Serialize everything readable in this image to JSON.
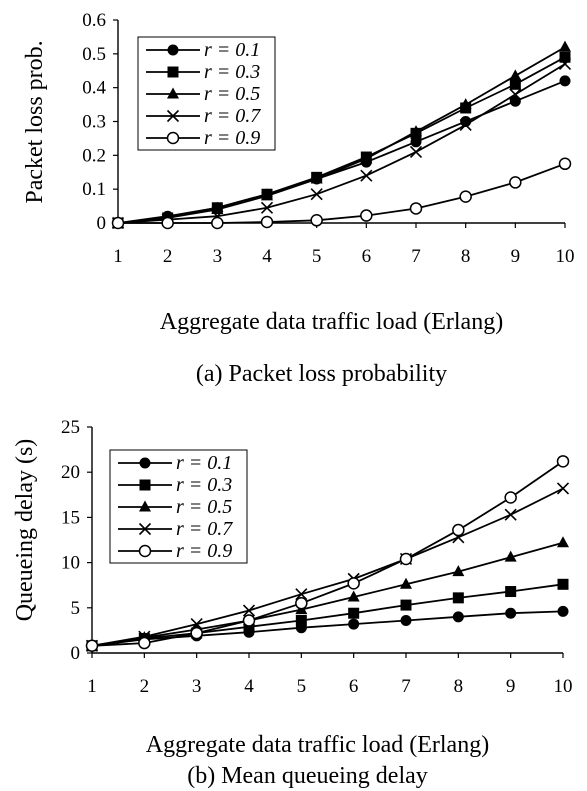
{
  "chart_data": [
    {
      "type": "line",
      "caption": "(a)   Packet loss probability",
      "xlabel": "Aggregate data traffic load (Erlang)",
      "ylabel": "Packet loss prob.",
      "x": [
        1,
        2,
        3,
        4,
        5,
        6,
        7,
        8,
        9,
        10
      ],
      "xlim": [
        1,
        10
      ],
      "ylim": [
        0,
        0.6
      ],
      "yticks": [
        "0",
        "0.1",
        "0.2",
        "0.3",
        "0.4",
        "0.5",
        "0.6"
      ],
      "xticks": [
        "1",
        "2",
        "3",
        "4",
        "5",
        "6",
        "7",
        "8",
        "9",
        "10"
      ],
      "grid": false,
      "legend_position": "top-left",
      "series": [
        {
          "name": "r = 0.1",
          "marker": "filled-circle",
          "values": [
            0,
            0.02,
            0.045,
            0.085,
            0.13,
            0.18,
            0.24,
            0.3,
            0.36,
            0.42
          ]
        },
        {
          "name": "r = 0.3",
          "marker": "filled-square",
          "values": [
            0,
            0.015,
            0.045,
            0.085,
            0.135,
            0.195,
            0.265,
            0.34,
            0.41,
            0.49
          ]
        },
        {
          "name": "r = 0.5",
          "marker": "filled-triangle",
          "values": [
            0,
            0.015,
            0.04,
            0.08,
            0.13,
            0.19,
            0.27,
            0.35,
            0.435,
            0.52
          ]
        },
        {
          "name": "r = 0.7",
          "marker": "cross",
          "values": [
            0,
            0.01,
            0.02,
            0.045,
            0.085,
            0.14,
            0.21,
            0.29,
            0.38,
            0.47
          ]
        },
        {
          "name": "r = 0.9",
          "marker": "open-circle",
          "values": [
            0,
            0,
            0,
            0.003,
            0.008,
            0.022,
            0.043,
            0.078,
            0.12,
            0.175
          ]
        }
      ]
    },
    {
      "type": "line",
      "caption": "(b)   Mean queueing delay",
      "xlabel": "Aggregate data traffic load (Erlang)",
      "ylabel": "Queueing delay (s)",
      "x": [
        1,
        2,
        3,
        4,
        5,
        6,
        7,
        8,
        9,
        10
      ],
      "xlim": [
        1,
        10
      ],
      "ylim": [
        0,
        25
      ],
      "yticks": [
        "0",
        "5",
        "10",
        "15",
        "20",
        "25"
      ],
      "xticks": [
        "1",
        "2",
        "3",
        "4",
        "5",
        "6",
        "7",
        "8",
        "9",
        "10"
      ],
      "grid": false,
      "legend_position": "top-left",
      "series": [
        {
          "name": "r = 0.1",
          "marker": "filled-circle",
          "values": [
            0.8,
            1.5,
            1.9,
            2.3,
            2.8,
            3.2,
            3.6,
            4.0,
            4.4,
            4.6
          ]
        },
        {
          "name": "r = 0.3",
          "marker": "filled-square",
          "values": [
            0.8,
            1.6,
            2.2,
            2.9,
            3.6,
            4.4,
            5.3,
            6.1,
            6.8,
            7.6
          ]
        },
        {
          "name": "r = 0.5",
          "marker": "filled-triangle",
          "values": [
            0.8,
            1.7,
            2.6,
            3.6,
            4.8,
            6.2,
            7.6,
            9.0,
            10.6,
            12.2
          ]
        },
        {
          "name": "r = 0.7",
          "marker": "cross",
          "values": [
            0.8,
            1.8,
            3.2,
            4.7,
            6.5,
            8.2,
            10.4,
            12.8,
            15.3,
            18.2
          ]
        },
        {
          "name": "r = 0.9",
          "marker": "open-circle",
          "values": [
            0.8,
            1.1,
            2.2,
            3.6,
            5.5,
            7.7,
            10.4,
            13.6,
            17.2,
            21.2
          ]
        }
      ]
    }
  ]
}
